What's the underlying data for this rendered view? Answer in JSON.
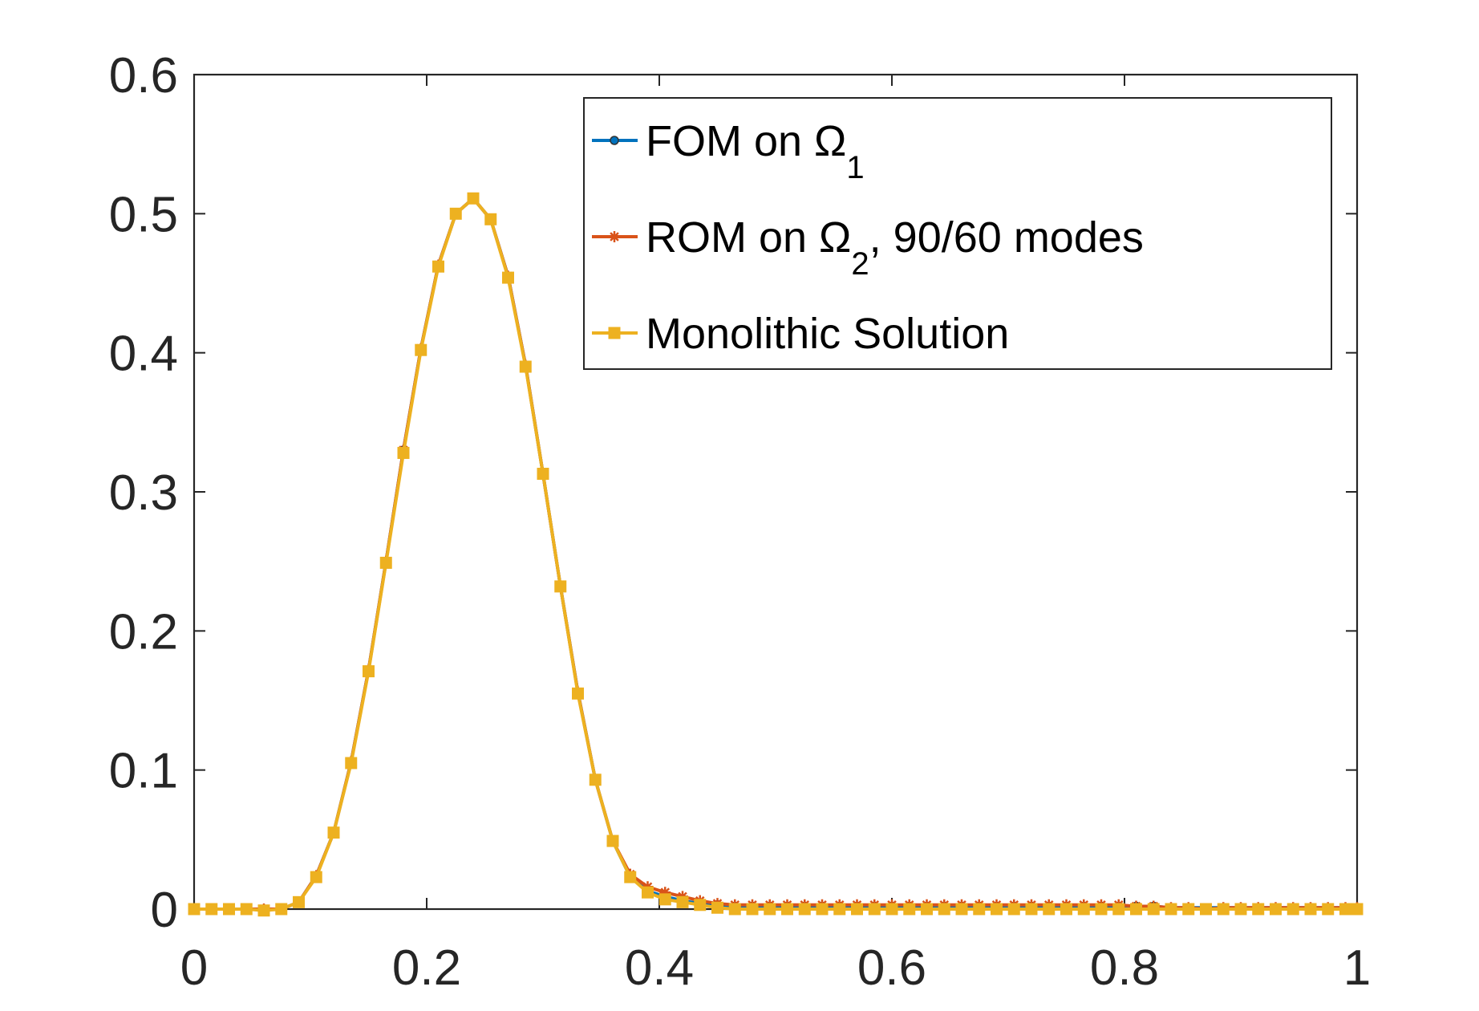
{
  "chart_data": {
    "type": "line",
    "title": "",
    "xlabel": "",
    "ylabel": "",
    "xlim": [
      0,
      1
    ],
    "ylim": [
      0,
      0.6
    ],
    "x_ticks": [
      0,
      0.2,
      0.4,
      0.6,
      0.8,
      1
    ],
    "x_tick_labels": [
      "0",
      "0.2",
      "0.4",
      "0.6",
      "0.8",
      "1"
    ],
    "y_ticks": [
      0,
      0.1,
      0.2,
      0.3,
      0.4,
      0.5,
      0.6
    ],
    "y_tick_labels": [
      "0",
      "0.1",
      "0.2",
      "0.3",
      "0.4",
      "0.5",
      "0.6"
    ],
    "grid": false,
    "legend_position": "top-right",
    "x": [
      0,
      0.015,
      0.03,
      0.045,
      0.06,
      0.075,
      0.09,
      0.105,
      0.12,
      0.135,
      0.15,
      0.165,
      0.18,
      0.195,
      0.21,
      0.225,
      0.24,
      0.255,
      0.27,
      0.285,
      0.3,
      0.315,
      0.33,
      0.345,
      0.36,
      0.375,
      0.39,
      0.405,
      0.42,
      0.435,
      0.45,
      0.465,
      0.48,
      0.495,
      0.51,
      0.525,
      0.54,
      0.555,
      0.57,
      0.585,
      0.6,
      0.615,
      0.63,
      0.645,
      0.66,
      0.675,
      0.69,
      0.705,
      0.72,
      0.735,
      0.75,
      0.765,
      0.78,
      0.795,
      0.81,
      0.825,
      0.84,
      0.855,
      0.87,
      0.885,
      0.9,
      0.915,
      0.93,
      0.945,
      0.96,
      0.975,
      0.99,
      1.0
    ],
    "series": [
      {
        "name": "FOM on Ω1",
        "legend_label": "FOM on Ω",
        "legend_subscript": "1",
        "color": "#0072BD",
        "marker": "dot",
        "values": [
          0,
          0,
          0,
          0,
          0,
          0,
          0.005,
          0.024,
          0.055,
          0.106,
          0.172,
          0.25,
          0.33,
          0.403,
          0.463,
          0.5,
          0.511,
          0.496,
          0.455,
          0.391,
          0.313,
          0.232,
          0.156,
          0.093,
          0.049,
          0.023,
          0.013,
          0.009,
          0.006,
          0.004,
          0.003,
          0.002,
          0.002,
          0.002,
          0.002,
          0.002,
          0.002,
          0.002,
          0.002,
          0.002,
          0.002,
          0.002,
          0.002,
          0.002,
          0.002,
          0.002,
          0.002,
          0.002,
          0.002,
          0.002,
          0.002,
          0.002,
          0.002,
          0.002,
          0.002,
          0.002,
          0.001,
          0.001,
          0.001,
          0.001,
          0.001,
          0.001,
          0.001,
          0.001,
          0.001,
          0.001,
          0.001,
          0.001
        ]
      },
      {
        "name": "ROM on Ω2, 90/60 modes",
        "legend_label": "ROM on Ω",
        "legend_subscript": "2",
        "legend_suffix": ", 90/60 modes",
        "color": "#D95319",
        "marker": "star",
        "values": [
          0,
          0,
          0,
          0,
          0,
          0,
          0.005,
          0.024,
          0.055,
          0.106,
          0.172,
          0.25,
          0.33,
          0.403,
          0.463,
          0.5,
          0.511,
          0.496,
          0.455,
          0.391,
          0.313,
          0.232,
          0.156,
          0.093,
          0.049,
          0.025,
          0.016,
          0.012,
          0.009,
          0.006,
          0.004,
          0.003,
          0.003,
          0.003,
          0.003,
          0.003,
          0.003,
          0.003,
          0.003,
          0.003,
          0.003,
          0.003,
          0.003,
          0.003,
          0.003,
          0.003,
          0.003,
          0.003,
          0.003,
          0.003,
          0.003,
          0.003,
          0.003,
          0.003,
          0.002,
          0.002,
          0.001,
          0.001,
          0,
          0.001,
          0.001,
          0.001,
          0.001,
          0.001,
          0.001,
          0.001,
          0.001,
          0.001
        ]
      },
      {
        "name": "Monolithic Solution",
        "legend_label": "Monolithic Solution",
        "color": "#EDB120",
        "marker": "square",
        "values": [
          0,
          0,
          0,
          0,
          -0.001,
          0,
          0.005,
          0.023,
          0.055,
          0.105,
          0.171,
          0.249,
          0.328,
          0.402,
          0.462,
          0.5,
          0.511,
          0.496,
          0.454,
          0.39,
          0.313,
          0.232,
          0.155,
          0.093,
          0.049,
          0.023,
          0.012,
          0.007,
          0.005,
          0.003,
          0.001,
          0,
          0,
          0,
          0,
          0,
          0,
          0,
          0,
          0,
          0,
          0,
          0,
          0,
          0,
          0,
          0,
          0,
          0,
          0,
          0,
          0,
          0,
          0,
          0,
          0,
          0,
          0,
          0,
          0,
          0,
          0,
          0,
          0,
          0,
          0,
          0,
          0
        ]
      }
    ]
  }
}
